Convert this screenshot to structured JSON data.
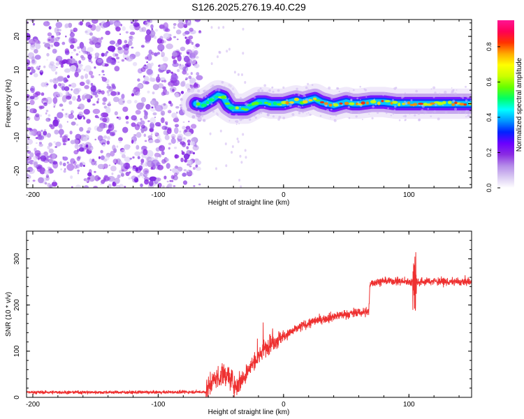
{
  "title": "S126.2025.276.19.40.C29",
  "chart_data": [
    {
      "type": "heatmap",
      "name": "spectrogram",
      "xlabel": "Height of straight line (km)",
      "ylabel": "Frequency (Hz)",
      "xlim": [
        -205,
        150
      ],
      "ylim": [
        -25,
        25
      ],
      "xticks": [
        -200,
        -100,
        0,
        100
      ],
      "yticks": [
        -20,
        -10,
        0,
        10,
        20
      ],
      "noise_region_km": [
        -205,
        -70
      ],
      "signal_start_km": -70,
      "signal_center_hz": [
        [
          -70,
          0.0
        ],
        [
          -65,
          -0.5
        ],
        [
          -58,
          1.0
        ],
        [
          -52,
          2.5
        ],
        [
          -48,
          2.0
        ],
        [
          -44,
          -0.5
        ],
        [
          -40,
          -1.5
        ],
        [
          -35,
          -1.5
        ],
        [
          -30,
          -1.5
        ],
        [
          -25,
          -0.5
        ],
        [
          -20,
          0.5
        ],
        [
          -15,
          0.5
        ],
        [
          -10,
          0.0
        ],
        [
          -5,
          0.0
        ],
        [
          0,
          0.0
        ],
        [
          5,
          0.5
        ],
        [
          10,
          1.0
        ],
        [
          15,
          0.5
        ],
        [
          20,
          1.0
        ],
        [
          25,
          1.5
        ],
        [
          30,
          0.5
        ],
        [
          35,
          0.0
        ],
        [
          40,
          -0.5
        ],
        [
          45,
          0.0
        ],
        [
          50,
          0.5
        ],
        [
          55,
          0.0
        ],
        [
          60,
          0.0
        ],
        [
          70,
          0.5
        ],
        [
          80,
          0.5
        ],
        [
          90,
          0.0
        ],
        [
          100,
          0.0
        ],
        [
          110,
          0.0
        ],
        [
          120,
          0.0
        ],
        [
          130,
          0.0
        ],
        [
          140,
          0.0
        ],
        [
          150,
          0.0
        ]
      ],
      "colorbar": {
        "label": "Normalized spectral amplitude",
        "range": [
          0.0,
          0.95
        ],
        "ticks": [
          "0.0",
          "0.2",
          "0.4",
          "0.6",
          "0.8"
        ],
        "tick_values": [
          0.0,
          0.2,
          0.4,
          0.6,
          0.8
        ],
        "colors": [
          "#ffffff",
          "#d8c8f2",
          "#b48ae8",
          "#8a2be2",
          "#6a00ff",
          "#0022ff",
          "#0099ff",
          "#00ffff",
          "#00ff66",
          "#66ff00",
          "#ccff00",
          "#ffff00",
          "#ffaa00",
          "#ff3300",
          "#ff0055",
          "#ff1493"
        ]
      }
    },
    {
      "type": "line",
      "name": "snr",
      "xlabel": "Height of straight line (km)",
      "ylabel": "SNR (10 * v/v)",
      "xlim": [
        -205,
        150
      ],
      "ylim": [
        0,
        360
      ],
      "xticks": [
        -200,
        -100,
        0,
        100
      ],
      "yticks": [
        0,
        100,
        200,
        300
      ],
      "color": "#ee3030",
      "trend": [
        [
          -205,
          11
        ],
        [
          -100,
          11
        ],
        [
          -62,
          12
        ],
        [
          -55,
          40
        ],
        [
          -45,
          50
        ],
        [
          -38,
          25
        ],
        [
          -33,
          40
        ],
        [
          -25,
          70
        ],
        [
          -15,
          105
        ],
        [
          -5,
          125
        ],
        [
          5,
          140
        ],
        [
          15,
          155
        ],
        [
          25,
          165
        ],
        [
          35,
          172
        ],
        [
          45,
          178
        ],
        [
          55,
          182
        ],
        [
          68,
          186
        ],
        [
          69,
          248
        ],
        [
          80,
          252
        ],
        [
          90,
          252
        ],
        [
          100,
          250
        ],
        [
          110,
          250
        ],
        [
          120,
          252
        ],
        [
          130,
          250
        ],
        [
          140,
          250
        ],
        [
          150,
          250
        ]
      ]
    }
  ]
}
